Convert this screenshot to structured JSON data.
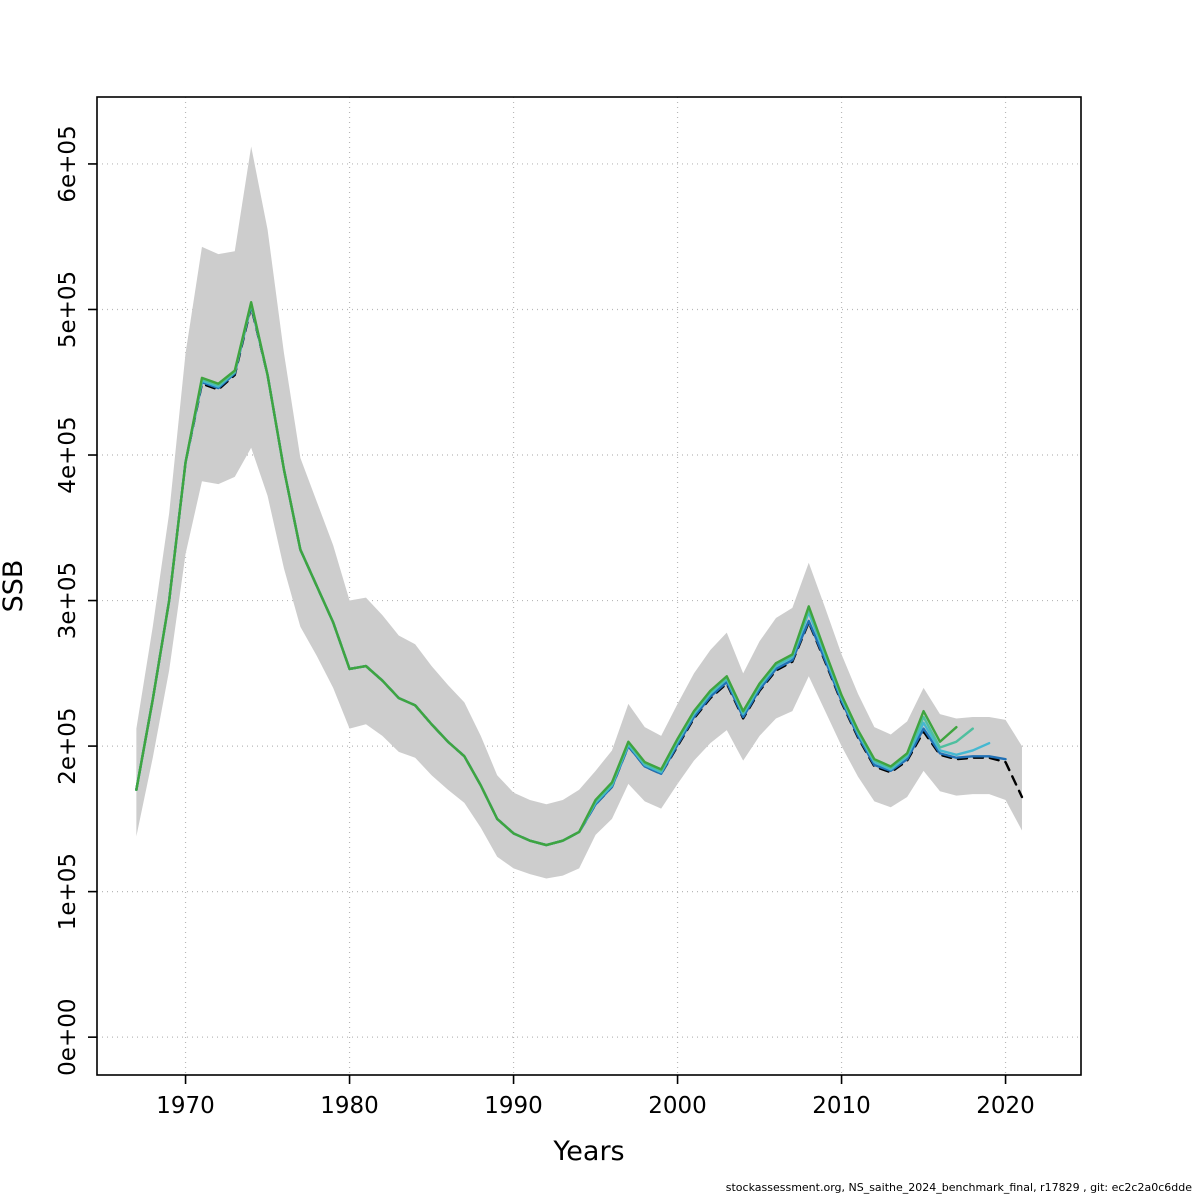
{
  "footer": {
    "text": "stockassessment.org, NS_saithe_2024_benchmark_final, r17829 , git: ec2c2a0c6dde",
    "color": "#000080"
  },
  "chart_data": {
    "type": "line",
    "title": "",
    "xlabel": "Years",
    "ylabel": "SSB",
    "xlim": [
      1964.6,
      2024.6
    ],
    "ylim": [
      -26000,
      646000
    ],
    "x_ticks": [
      1970,
      1980,
      1990,
      2000,
      2010,
      2020
    ],
    "y_ticks": [
      0,
      100000,
      200000,
      300000,
      400000,
      500000,
      600000
    ],
    "y_tick_labels": [
      "0e+00",
      "1e+05",
      "2e+05",
      "3e+05",
      "4e+05",
      "5e+05",
      "6e+05"
    ],
    "grid": true,
    "grid_color": "#b8b8b8",
    "legend_position": "none",
    "years": [
      1967,
      1968,
      1969,
      1970,
      1971,
      1972,
      1973,
      1974,
      1975,
      1976,
      1977,
      1978,
      1979,
      1980,
      1981,
      1982,
      1983,
      1984,
      1985,
      1986,
      1987,
      1988,
      1989,
      1990,
      1991,
      1992,
      1993,
      1994,
      1995,
      1996,
      1997,
      1998,
      1999,
      2000,
      2001,
      2002,
      2003,
      2004,
      2005,
      2006,
      2007,
      2008,
      2009,
      2010,
      2011,
      2012,
      2013,
      2014,
      2015,
      2016,
      2017,
      2018,
      2019,
      2020,
      2021
    ],
    "band": {
      "color": "#cdcdcd",
      "lower": [
        138000,
        192000,
        252000,
        332000,
        382000,
        380000,
        385000,
        405000,
        372000,
        322000,
        282000,
        262000,
        240000,
        212000,
        215000,
        207000,
        196000,
        192000,
        180000,
        170000,
        161000,
        144000,
        124000,
        116000,
        112000,
        109000,
        111000,
        116000,
        139000,
        150000,
        174000,
        162000,
        157000,
        174000,
        190000,
        202000,
        211000,
        190000,
        207000,
        219000,
        224000,
        248000,
        224000,
        200000,
        179000,
        162000,
        158000,
        165000,
        183000,
        169000,
        166000,
        167000,
        167000,
        163000,
        142000
      ],
      "upper": [
        212000,
        282000,
        360000,
        470000,
        543000,
        538000,
        540000,
        612000,
        555000,
        470000,
        398000,
        368000,
        338000,
        300000,
        302000,
        290000,
        276000,
        270000,
        255000,
        242000,
        230000,
        207000,
        180000,
        168000,
        163000,
        160000,
        163000,
        170000,
        183000,
        197000,
        229000,
        213000,
        207000,
        229000,
        250000,
        266000,
        278000,
        250000,
        272000,
        288000,
        295000,
        326000,
        295000,
        263000,
        236000,
        213000,
        208000,
        217000,
        240000,
        222000,
        219000,
        220000,
        220000,
        218000,
        200000
      ]
    },
    "series": [
      {
        "name": "base-fit-2021",
        "color": "#000000",
        "dashed": true,
        "end_year": 2021,
        "values": [
          170000,
          232000,
          300000,
          395000,
          449000,
          445000,
          455000,
          502000,
          455000,
          390000,
          335000,
          310000,
          285000,
          253000,
          255000,
          245000,
          233000,
          228000,
          215000,
          203000,
          193000,
          173000,
          150000,
          140000,
          135000,
          132000,
          135000,
          141000,
          160000,
          172000,
          200000,
          186000,
          181000,
          200000,
          219000,
          233000,
          243000,
          219000,
          238000,
          252000,
          258000,
          285000,
          258000,
          230000,
          206000,
          186000,
          182000,
          190000,
          210000,
          194000,
          191000,
          192000,
          192000,
          189000,
          165000
        ]
      },
      {
        "name": "retro-peel-2020",
        "color": "#2171b5",
        "dashed": false,
        "end_year": 2020,
        "values": [
          170000,
          232000,
          300000,
          395000,
          450000,
          446000,
          456000,
          503000,
          455000,
          390000,
          335000,
          310000,
          285000,
          253000,
          255000,
          245000,
          233000,
          228000,
          215000,
          203000,
          193000,
          173000,
          150000,
          140000,
          135000,
          132000,
          135000,
          141000,
          160000,
          172000,
          200000,
          186000,
          181000,
          201000,
          220000,
          234000,
          244000,
          220000,
          239000,
          253000,
          259000,
          286000,
          259000,
          231000,
          207000,
          187000,
          183000,
          191000,
          212000,
          195000,
          192000,
          193000,
          193000,
          191000
        ]
      },
      {
        "name": "retro-peel-2019",
        "color": "#45b8d1",
        "dashed": false,
        "end_year": 2019,
        "values": [
          170000,
          232000,
          300000,
          395000,
          451000,
          447000,
          457000,
          504000,
          455000,
          390000,
          335000,
          310000,
          285000,
          253000,
          255000,
          245000,
          233000,
          228000,
          215000,
          203000,
          193000,
          173000,
          150000,
          140000,
          135000,
          132000,
          135000,
          141000,
          161000,
          173000,
          201000,
          187000,
          182000,
          203000,
          222000,
          236000,
          246000,
          222000,
          241000,
          255000,
          261000,
          292000,
          262000,
          233000,
          209000,
          189000,
          184000,
          193000,
          216000,
          197000,
          194000,
          197000,
          202000
        ]
      },
      {
        "name": "retro-peel-2018",
        "color": "#4fbf9f",
        "dashed": false,
        "end_year": 2018,
        "values": [
          170000,
          232000,
          300000,
          395000,
          452000,
          448000,
          457000,
          504000,
          455000,
          390000,
          335000,
          310000,
          285000,
          253000,
          255000,
          245000,
          233000,
          228000,
          215000,
          203000,
          193000,
          173000,
          150000,
          140000,
          135000,
          132000,
          135000,
          141000,
          162000,
          174000,
          202000,
          188000,
          183000,
          204000,
          223000,
          237000,
          247000,
          223000,
          242000,
          256000,
          262000,
          294000,
          264000,
          234000,
          210000,
          190000,
          185000,
          194000,
          220000,
          199000,
          203000,
          212000
        ]
      },
      {
        "name": "retro-peel-2017",
        "color": "#3fa43f",
        "dashed": false,
        "end_year": 2017,
        "values": [
          170000,
          232000,
          300000,
          395000,
          453000,
          449000,
          458000,
          505000,
          455000,
          390000,
          335000,
          310000,
          285000,
          253000,
          255000,
          245000,
          233000,
          228000,
          215000,
          203000,
          193000,
          173000,
          150000,
          140000,
          135000,
          132000,
          135000,
          141000,
          163000,
          175000,
          203000,
          189000,
          184000,
          205000,
          224000,
          238000,
          248000,
          224000,
          243000,
          257000,
          263000,
          296000,
          265000,
          235000,
          211000,
          191000,
          186000,
          195000,
          224000,
          203000,
          213000
        ]
      }
    ]
  }
}
